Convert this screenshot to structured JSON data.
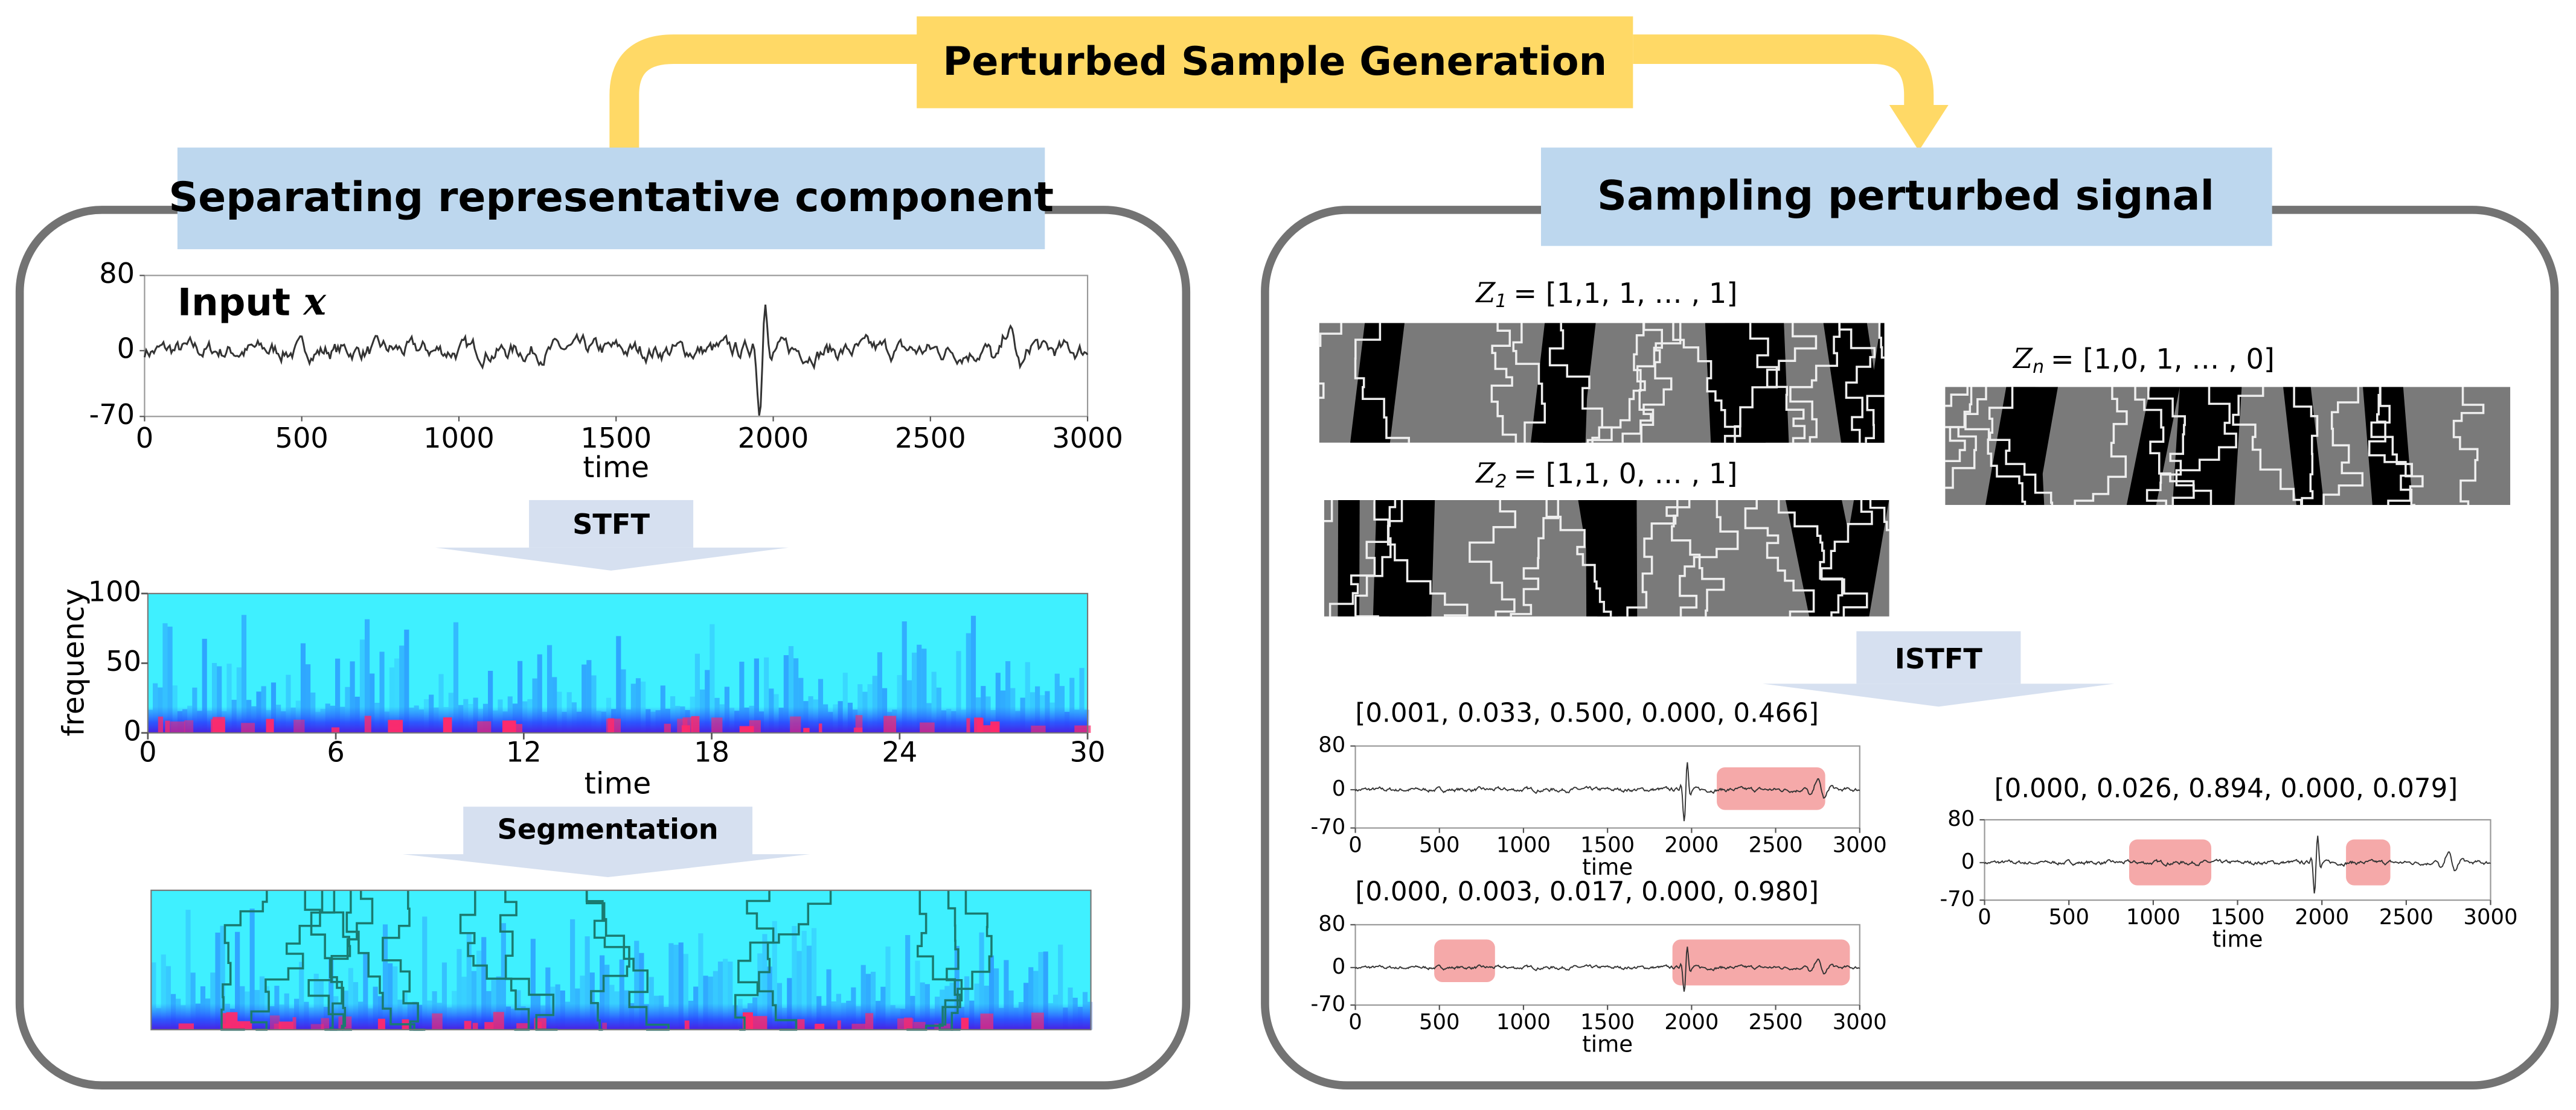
{
  "title": "Perturbed Sample Generation",
  "signal_axes": {
    "xlim": [
      0,
      3000
    ],
    "ylim": [
      -70,
      80
    ],
    "xticks": [
      0,
      500,
      1000,
      1500,
      2000,
      2500,
      3000
    ],
    "yticks": [
      80,
      0,
      -70
    ],
    "xlabel": "time"
  },
  "left_panel": {
    "title": "Separating representative component",
    "input_label": "Input",
    "input_symbol": "x",
    "stft_arrow": "STFT",
    "spectrogram": {
      "xlim": [
        0,
        30
      ],
      "ylim": [
        0,
        100
      ],
      "xticks": [
        0,
        6,
        12,
        18,
        24,
        30
      ],
      "yticks": [
        100,
        50,
        0
      ],
      "xlabel": "time",
      "ylabel": "frequency"
    },
    "segmentation_arrow": "Segmentation"
  },
  "right_panel": {
    "title": "Sampling perturbed signal",
    "masks": [
      {
        "symbol": "Z",
        "subscript": "1",
        "vector": "= [1,1, 1, … , 1]"
      },
      {
        "symbol": "Z",
        "subscript": "2",
        "vector": "= [1,1, 0, … , 1]"
      },
      {
        "symbol": "Z",
        "subscript": "n",
        "vector": "= [1,0, 1, … , 0]"
      }
    ],
    "istft_arrow": "ISTFT",
    "outputs": [
      {
        "weights": "[0.001, 0.033, 0.500, 0.000, 0.466]"
      },
      {
        "weights": "[0.000, 0.003, 0.017, 0.000, 0.980]"
      },
      {
        "weights": "[0.000, 0.026, 0.894, 0.000, 0.079]"
      }
    ]
  }
}
